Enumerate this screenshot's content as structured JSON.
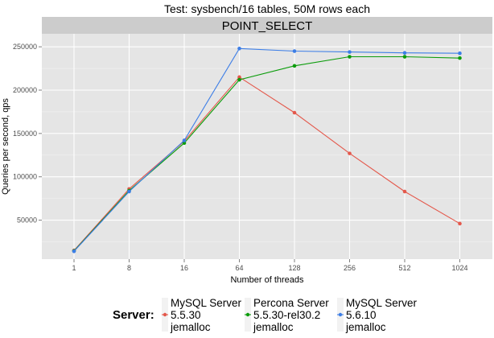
{
  "chart_data": {
    "type": "line",
    "title": "Test: sysbench/16 tables, 50M rows each",
    "facet": "POINT_SELECT",
    "xlabel": "Number of threads",
    "ylabel": "Queries per second, qps",
    "x_scale": "log2",
    "x": [
      "1",
      "8",
      "16",
      "64",
      "128",
      "256",
      "512",
      "1024"
    ],
    "y_ticks": [
      "50000",
      "100000",
      "150000",
      "200000",
      "250000"
    ],
    "ylim": [
      5000,
      265000
    ],
    "grid": true,
    "legend": {
      "title": "Server:",
      "position": "bottom"
    },
    "series": [
      {
        "name": [
          "MySQL Server",
          "5.5.30",
          "jemalloc"
        ],
        "color": "#e4584b",
        "values": [
          15000,
          86000,
          141000,
          215000,
          174000,
          127000,
          83000,
          46000
        ]
      },
      {
        "name": [
          "Percona Server",
          "5.5.30-rel30.2",
          "jemalloc"
        ],
        "color": "#0b9c0b",
        "values": [
          14500,
          84000,
          139000,
          212000,
          228000,
          238500,
          238500,
          237000
        ]
      },
      {
        "name": [
          "MySQL Server",
          "5.6.10",
          "jemalloc"
        ],
        "color": "#3d7ee6",
        "values": [
          14000,
          83000,
          142000,
          248000,
          245000,
          244000,
          243000,
          242500
        ]
      }
    ]
  }
}
